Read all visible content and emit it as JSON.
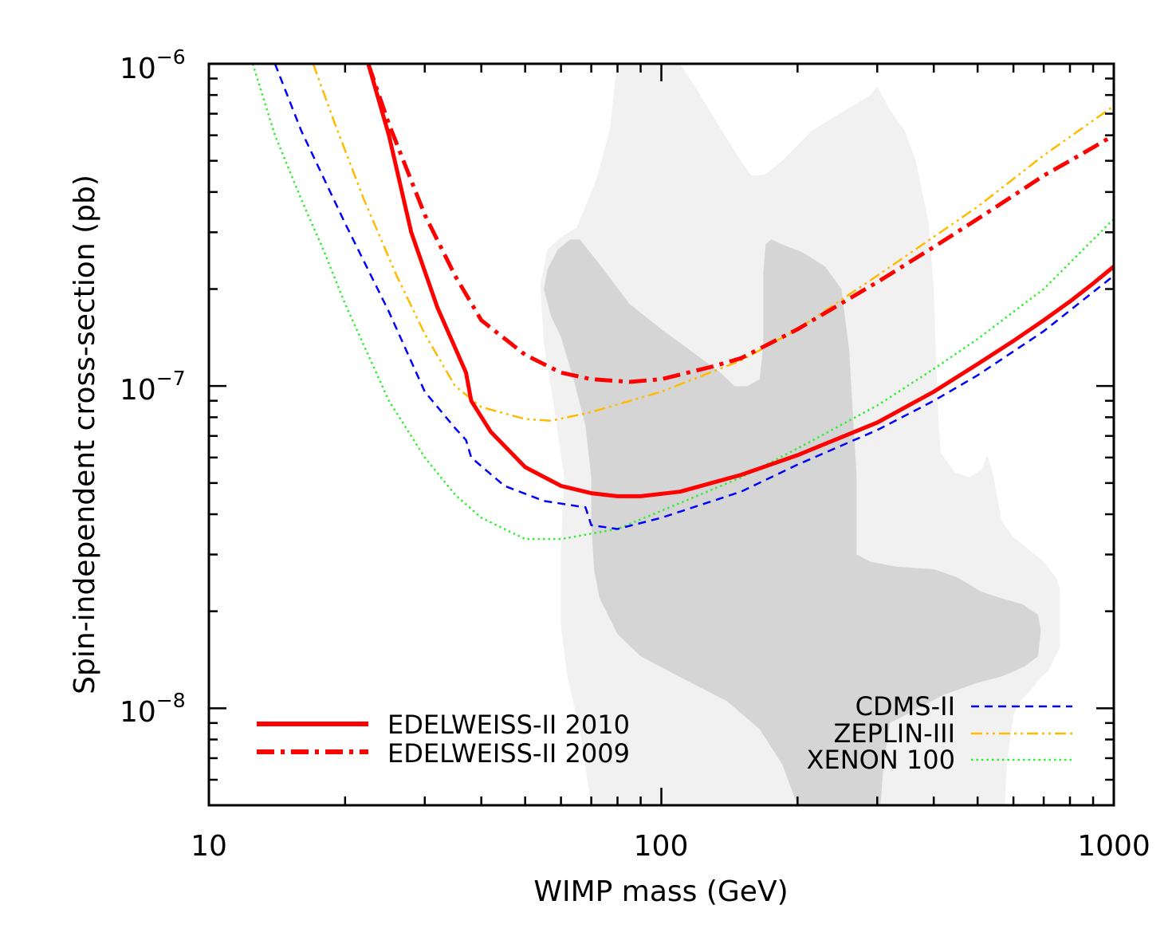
{
  "chart_data": {
    "type": "line",
    "title": "",
    "xlabel": "WIMP mass (GeV)",
    "ylabel": "Spin-independent cross-section (pb)",
    "xscale": "log",
    "yscale": "log",
    "xlim": [
      10,
      1000
    ],
    "ylim": [
      5e-09,
      1e-06
    ],
    "grid": false,
    "x_ticks": [
      {
        "value": 10,
        "label": "10"
      },
      {
        "value": 100,
        "label": "100"
      },
      {
        "value": 1000,
        "label": "1000"
      }
    ],
    "y_ticks": [
      {
        "value": 1e-08,
        "base": "10",
        "exp": "−8"
      },
      {
        "value": 1e-07,
        "base": "10",
        "exp": "−7"
      },
      {
        "value": 1e-06,
        "base": "10",
        "exp": "−6"
      }
    ],
    "regions": [
      {
        "level": "outer",
        "color": "#f1f1f1",
        "points": [
          [
            70,
            5e-09
          ],
          [
            66,
            8.6e-09
          ],
          [
            62,
            1.25e-08
          ],
          [
            60,
            1.8e-08
          ],
          [
            60,
            3.2e-08
          ],
          [
            61,
            5.2e-08
          ],
          [
            58,
            8.5e-08
          ],
          [
            55,
            1.35e-07
          ],
          [
            54,
            2.05e-07
          ],
          [
            56,
            2.65e-07
          ],
          [
            60,
            2.9e-07
          ],
          [
            65,
            3.1e-07
          ],
          [
            72,
            4.4e-07
          ],
          [
            77,
            6.3e-07
          ],
          [
            79,
            8.8e-07
          ],
          [
            80,
            1e-06
          ],
          [
            110,
            1e-06
          ],
          [
            120,
            8.3e-07
          ],
          [
            135,
            6.3e-07
          ],
          [
            150,
            5e-07
          ],
          [
            158,
            4.5e-07
          ],
          [
            162,
            4.5e-07
          ],
          [
            170,
            4.55e-07
          ],
          [
            185,
            5e-07
          ],
          [
            215,
            6.2e-07
          ],
          [
            260,
            7.3e-07
          ],
          [
            290,
            8e-07
          ],
          [
            300,
            8.5e-07
          ],
          [
            320,
            7.2e-07
          ],
          [
            345,
            6.2e-07
          ],
          [
            365,
            5e-07
          ],
          [
            390,
            3.2e-07
          ],
          [
            400,
            2e-07
          ],
          [
            405,
            1.2e-07
          ],
          [
            410,
            7.5e-08
          ],
          [
            415,
            6.2e-08
          ],
          [
            445,
            5.4e-08
          ],
          [
            480,
            5.2e-08
          ],
          [
            510,
            5.5e-08
          ],
          [
            525,
            6.1e-08
          ],
          [
            540,
            5.4e-08
          ],
          [
            565,
            3.8e-08
          ],
          [
            600,
            3.4e-08
          ],
          [
            650,
            3.1e-08
          ],
          [
            700,
            2.85e-08
          ],
          [
            745,
            2.55e-08
          ],
          [
            760,
            2.35e-08
          ],
          [
            760,
            1.55e-08
          ],
          [
            715,
            1.3e-08
          ],
          [
            690,
            1.25e-08
          ],
          [
            660,
            1.15e-08
          ],
          [
            620,
            1.05e-08
          ],
          [
            600,
            9.5e-09
          ],
          [
            580,
            6.7e-09
          ],
          [
            575,
            5e-09
          ]
        ]
      },
      {
        "level": "inner",
        "color": "#d5d5d5",
        "points": [
          [
            200,
            5e-09
          ],
          [
            185,
            6.7e-09
          ],
          [
            165,
            8.6e-09
          ],
          [
            140,
            1.05e-08
          ],
          [
            110,
            1.25e-08
          ],
          [
            90,
            1.45e-08
          ],
          [
            80,
            1.7e-08
          ],
          [
            73,
            2.2e-08
          ],
          [
            71,
            2.7e-08
          ],
          [
            70,
            3.8e-08
          ],
          [
            70,
            5.2e-08
          ],
          [
            68,
            7.5e-08
          ],
          [
            64,
            1.05e-07
          ],
          [
            60,
            1.42e-07
          ],
          [
            57,
            1.65e-07
          ],
          [
            55,
            2e-07
          ],
          [
            56,
            2.3e-07
          ],
          [
            59,
            2.65e-07
          ],
          [
            63,
            2.85e-07
          ],
          [
            66,
            2.85e-07
          ],
          [
            72,
            2.45e-07
          ],
          [
            85,
            1.8e-07
          ],
          [
            100,
            1.5e-07
          ],
          [
            115,
            1.3e-07
          ],
          [
            135,
            1.1e-07
          ],
          [
            145,
            1e-07
          ],
          [
            155,
            1e-07
          ],
          [
            165,
            1.05e-07
          ],
          [
            168,
            1.35e-07
          ],
          [
            168,
            2.25e-07
          ],
          [
            170,
            2.75e-07
          ],
          [
            175,
            2.85e-07
          ],
          [
            185,
            2.75e-07
          ],
          [
            205,
            2.6e-07
          ],
          [
            230,
            2.35e-07
          ],
          [
            250,
            2e-07
          ],
          [
            260,
            1.3e-07
          ],
          [
            265,
            8.2e-08
          ],
          [
            270,
            5.3e-08
          ],
          [
            270,
            3e-08
          ],
          [
            290,
            2.85e-08
          ],
          [
            330,
            2.75e-08
          ],
          [
            400,
            2.7e-08
          ],
          [
            450,
            2.55e-08
          ],
          [
            510,
            2.3e-08
          ],
          [
            560,
            2.2e-08
          ],
          [
            630,
            2.1e-08
          ],
          [
            680,
            1.95e-08
          ],
          [
            690,
            1.75e-08
          ],
          [
            680,
            1.45e-08
          ],
          [
            635,
            1.35e-08
          ],
          [
            600,
            1.3e-08
          ],
          [
            560,
            1.25e-08
          ],
          [
            500,
            1.2e-08
          ],
          [
            420,
            1.1e-08
          ],
          [
            370,
            1e-08
          ],
          [
            320,
            9e-09
          ],
          [
            310,
            6.7e-09
          ],
          [
            305,
            5e-09
          ]
        ]
      }
    ],
    "series": [
      {
        "name": "EDELWEISS-II 2010",
        "color": "#ff0000",
        "style": "solid",
        "points": [
          [
            22.5,
            1e-06
          ],
          [
            25,
            6e-07
          ],
          [
            28,
            3e-07
          ],
          [
            32,
            1.75e-07
          ],
          [
            37,
            1.1e-07
          ],
          [
            38,
            9e-08
          ],
          [
            42,
            7.2e-08
          ],
          [
            50,
            5.6e-08
          ],
          [
            60,
            4.9e-08
          ],
          [
            70,
            4.65e-08
          ],
          [
            80,
            4.55e-08
          ],
          [
            90,
            4.55e-08
          ],
          [
            110,
            4.7e-08
          ],
          [
            150,
            5.3e-08
          ],
          [
            200,
            6.1e-08
          ],
          [
            300,
            7.7e-08
          ],
          [
            400,
            9.6e-08
          ],
          [
            500,
            1.17e-07
          ],
          [
            600,
            1.38e-07
          ],
          [
            700,
            1.6e-07
          ],
          [
            800,
            1.83e-07
          ],
          [
            900,
            2.08e-07
          ],
          [
            1000,
            2.35e-07
          ]
        ]
      },
      {
        "name": "EDELWEISS-II 2009",
        "color": "#ff0000",
        "style": "dash-dot",
        "points": [
          [
            22.5,
            1e-06
          ],
          [
            25,
            6.5e-07
          ],
          [
            30,
            3.4e-07
          ],
          [
            35,
            2.2e-07
          ],
          [
            40,
            1.6e-07
          ],
          [
            50,
            1.25e-07
          ],
          [
            60,
            1.1e-07
          ],
          [
            70,
            1.05e-07
          ],
          [
            85,
            1.03e-07
          ],
          [
            100,
            1.05e-07
          ],
          [
            130,
            1.15e-07
          ],
          [
            150,
            1.22e-07
          ],
          [
            200,
            1.5e-07
          ],
          [
            300,
            2.1e-07
          ],
          [
            400,
            2.7e-07
          ],
          [
            500,
            3.3e-07
          ],
          [
            600,
            3.9e-07
          ],
          [
            700,
            4.5e-07
          ],
          [
            800,
            5e-07
          ],
          [
            900,
            5.5e-07
          ],
          [
            1000,
            6e-07
          ]
        ]
      },
      {
        "name": "CDMS-II",
        "color": "#0000ff",
        "style": "dashed",
        "points": [
          [
            14,
            1e-06
          ],
          [
            16,
            6.2e-07
          ],
          [
            20,
            3.2e-07
          ],
          [
            25,
            1.7e-07
          ],
          [
            30,
            9.6e-08
          ],
          [
            35,
            7.4e-08
          ],
          [
            37,
            6.8e-08
          ],
          [
            38,
            6e-08
          ],
          [
            45,
            4.9e-08
          ],
          [
            55,
            4.4e-08
          ],
          [
            68,
            4.2e-08
          ],
          [
            70,
            3.7e-08
          ],
          [
            80,
            3.6e-08
          ],
          [
            100,
            3.9e-08
          ],
          [
            150,
            4.7e-08
          ],
          [
            200,
            5.7e-08
          ],
          [
            300,
            7.3e-08
          ],
          [
            400,
            9e-08
          ],
          [
            500,
            1.08e-07
          ],
          [
            700,
            1.48e-07
          ],
          [
            1000,
            2.2e-07
          ]
        ]
      },
      {
        "name": "ZEPLIN-III",
        "color": "#ffbb00",
        "style": "dash-dot-dot",
        "points": [
          [
            17,
            1e-06
          ],
          [
            19,
            6.5e-07
          ],
          [
            22,
            3.8e-07
          ],
          [
            26,
            2.2e-07
          ],
          [
            30,
            1.45e-07
          ],
          [
            35,
            1e-07
          ],
          [
            40,
            8.6e-08
          ],
          [
            50,
            7.9e-08
          ],
          [
            57,
            7.8e-08
          ],
          [
            70,
            8.3e-08
          ],
          [
            100,
            9.6e-08
          ],
          [
            150,
            1.2e-07
          ],
          [
            200,
            1.5e-07
          ],
          [
            300,
            2.2e-07
          ],
          [
            500,
            3.6e-07
          ],
          [
            700,
            5.2e-07
          ],
          [
            1000,
            7.4e-07
          ]
        ]
      },
      {
        "name": "XENON 100",
        "color": "#33ee33",
        "style": "dotted",
        "points": [
          [
            12.5,
            1e-06
          ],
          [
            14,
            6e-07
          ],
          [
            16,
            3.8e-07
          ],
          [
            18,
            2.6e-07
          ],
          [
            20,
            1.8e-07
          ],
          [
            25,
            9e-08
          ],
          [
            30,
            6e-08
          ],
          [
            35,
            4.6e-08
          ],
          [
            40,
            3.9e-08
          ],
          [
            50,
            3.35e-08
          ],
          [
            60,
            3.35e-08
          ],
          [
            80,
            3.6e-08
          ],
          [
            100,
            4.1e-08
          ],
          [
            150,
            5.2e-08
          ],
          [
            200,
            6.4e-08
          ],
          [
            300,
            8.7e-08
          ],
          [
            400,
            1.13e-07
          ],
          [
            500,
            1.4e-07
          ],
          [
            700,
            2e-07
          ],
          [
            1000,
            3.3e-07
          ]
        ]
      }
    ],
    "legend": {
      "left": [
        "EDELWEISS-II 2010",
        "EDELWEISS-II 2009"
      ],
      "right": [
        "CDMS-II",
        "ZEPLIN-III",
        "XENON 100"
      ]
    }
  }
}
